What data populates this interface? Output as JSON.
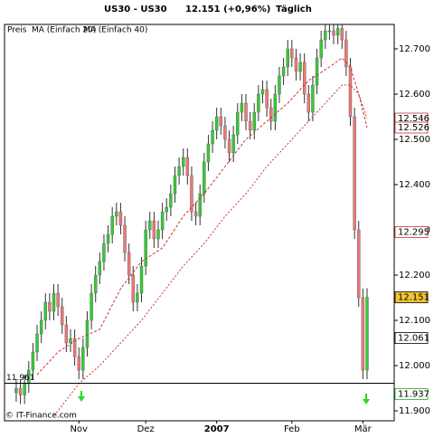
{
  "chart_data": {
    "type": "candlestick",
    "title": "US30 - US30",
    "price_label": "12.151 (+0,96%)",
    "period": "Täglich",
    "copyright": "© IT-Finance.com",
    "xlim": [
      -2.8,
      90.5
    ],
    "ylim": [
      11878,
      12754
    ],
    "xticks": [
      {
        "value": 15,
        "label": "Nov"
      },
      {
        "value": 31,
        "label": "Dez"
      },
      {
        "value": 48,
        "label": "2007"
      },
      {
        "value": 66,
        "label": "Feb"
      },
      {
        "value": 83,
        "label": "Mär"
      }
    ],
    "yticks": [
      {
        "value": 11900,
        "label": "11.900"
      },
      {
        "value": 12000,
        "label": "12.000"
      },
      {
        "value": 12100,
        "label": "12.100"
      },
      {
        "value": 12200,
        "label": "12.200"
      },
      {
        "value": 12300,
        "label": "12.300"
      },
      {
        "value": 12400,
        "label": "12.400"
      },
      {
        "value": 12500,
        "label": "12.500"
      },
      {
        "value": 12600,
        "label": "12.600"
      },
      {
        "value": 12700,
        "label": "12.700"
      }
    ],
    "up_color": "#33cc33",
    "down_color": "#ee7777",
    "series": [
      {
        "name": "Preis",
        "color": "#000000",
        "open": [
          11940,
          11950,
          11935,
          11960,
          11990,
          12030,
          12070,
          12100,
          12140,
          12120,
          12160,
          12130,
          12090,
          12050,
          12060,
          12020,
          11990,
          12040,
          12100,
          12160,
          12200,
          12230,
          12270,
          12290,
          12330,
          12340,
          12310,
          12250,
          12200,
          12140,
          12160,
          12220,
          12300,
          12320,
          12280,
          12300,
          12340,
          12350,
          12380,
          12420,
          12440,
          12460,
          12420,
          12340,
          12330,
          12380,
          12450,
          12490,
          12520,
          12550,
          12530,
          12500,
          12470,
          12510,
          12560,
          12580,
          12540,
          12520,
          12560,
          12600,
          12610,
          12570,
          12540,
          12600,
          12640,
          12660,
          12700,
          12680,
          12650,
          12670,
          12600,
          12560,
          12620,
          12680,
          12720,
          12740,
          12740,
          12730,
          12745,
          12720,
          12660,
          12550,
          12300,
          12150,
          11990
        ],
        "high": [
          11970,
          11970,
          11980,
          12010,
          12050,
          12090,
          12120,
          12160,
          12160,
          12180,
          12180,
          12150,
          12110,
          12080,
          12080,
          12040,
          12060,
          12120,
          12180,
          12220,
          12250,
          12290,
          12310,
          12350,
          12360,
          12360,
          12330,
          12270,
          12220,
          12180,
          12240,
          12320,
          12340,
          12340,
          12320,
          12360,
          12370,
          12400,
          12440,
          12460,
          12480,
          12480,
          12440,
          12360,
          12400,
          12470,
          12510,
          12540,
          12570,
          12570,
          12550,
          12520,
          12530,
          12580,
          12600,
          12600,
          12560,
          12580,
          12620,
          12630,
          12630,
          12590,
          12620,
          12660,
          12680,
          12720,
          12720,
          12700,
          12690,
          12690,
          12620,
          12640,
          12700,
          12740,
          12760,
          12760,
          12760,
          12765,
          12765,
          12740,
          12680,
          12570,
          12320,
          12170,
          12171
        ],
        "low": [
          11920,
          11915,
          11915,
          11940,
          11970,
          12010,
          12050,
          12080,
          12100,
          12100,
          12110,
          12070,
          12030,
          12030,
          12000,
          11970,
          11970,
          12020,
          12080,
          12140,
          12180,
          12210,
          12250,
          12270,
          12310,
          12290,
          12230,
          12180,
          12120,
          12120,
          12140,
          12200,
          12280,
          12260,
          12260,
          12280,
          12320,
          12330,
          12360,
          12400,
          12420,
          12400,
          12320,
          12310,
          12310,
          12360,
          12430,
          12470,
          12500,
          12510,
          12480,
          12450,
          12450,
          12490,
          12540,
          12520,
          12500,
          12500,
          12540,
          12580,
          12550,
          12520,
          12520,
          12580,
          12620,
          12640,
          12660,
          12630,
          12630,
          12580,
          12540,
          12540,
          12600,
          12660,
          12700,
          12720,
          12710,
          12710,
          12700,
          12640,
          12530,
          12280,
          12130,
          11970,
          11970
        ],
        "close": [
          11950,
          11935,
          11960,
          11990,
          12030,
          12070,
          12100,
          12140,
          12120,
          12160,
          12130,
          12090,
          12050,
          12060,
          12020,
          11990,
          12040,
          12100,
          12160,
          12200,
          12230,
          12270,
          12290,
          12330,
          12340,
          12310,
          12250,
          12200,
          12140,
          12160,
          12220,
          12300,
          12320,
          12280,
          12300,
          12340,
          12350,
          12380,
          12420,
          12440,
          12460,
          12420,
          12340,
          12330,
          12380,
          12450,
          12490,
          12520,
          12550,
          12530,
          12500,
          12470,
          12510,
          12560,
          12580,
          12540,
          12520,
          12560,
          12600,
          12610,
          12570,
          12540,
          12600,
          12640,
          12660,
          12700,
          12680,
          12650,
          12670,
          12600,
          12560,
          12620,
          12680,
          12720,
          12740,
          12740,
          12730,
          12745,
          12720,
          12660,
          12550,
          12300,
          12150,
          11990,
          12151
        ]
      },
      {
        "name": "MA (Einfach 20)",
        "color": "#cc3333",
        "x": [
          5,
          10,
          15,
          20,
          25,
          30,
          35,
          40,
          45,
          50,
          55,
          60,
          65,
          70,
          75,
          78,
          80,
          82,
          84
        ],
        "values": [
          11980,
          12030,
          12060,
          12080,
          12170,
          12230,
          12260,
          12330,
          12380,
          12440,
          12500,
          12540,
          12580,
          12630,
          12660,
          12680,
          12660,
          12600,
          12526
        ]
      },
      {
        "name": "MA (Einfach 40)",
        "color": "#cc3333",
        "x": [
          9,
          10,
          15,
          20,
          25,
          30,
          35,
          40,
          45,
          50,
          55,
          60,
          65,
          70,
          75,
          78,
          80,
          82,
          84
        ],
        "values": [
          11890,
          11900,
          11960,
          12000,
          12050,
          12100,
          12160,
          12220,
          12270,
          12330,
          12380,
          12440,
          12490,
          12540,
          12590,
          12620,
          12620,
          12600,
          12546
        ]
      }
    ],
    "level": {
      "value": 11961,
      "label": "11.961"
    },
    "markers": [
      {
        "value": 12546,
        "label": "12.546",
        "color": "#cc3333",
        "fill": "#ffffff"
      },
      {
        "value": 12526,
        "label": "12.526",
        "color": "#cc3333",
        "fill": "#ffffff"
      },
      {
        "value": 12295,
        "label": "12.295",
        "color": "#cc3333",
        "fill": "#ffffff"
      },
      {
        "value": 12151,
        "label": "12.151",
        "color": "#000000",
        "fill": "#f4c430"
      },
      {
        "value": 12061,
        "label": "12.061",
        "color": "#000000",
        "fill": "#ffffff"
      },
      {
        "value": 11937,
        "label": "11.937",
        "color": "#22aa22",
        "fill": "#ffffff"
      }
    ]
  }
}
